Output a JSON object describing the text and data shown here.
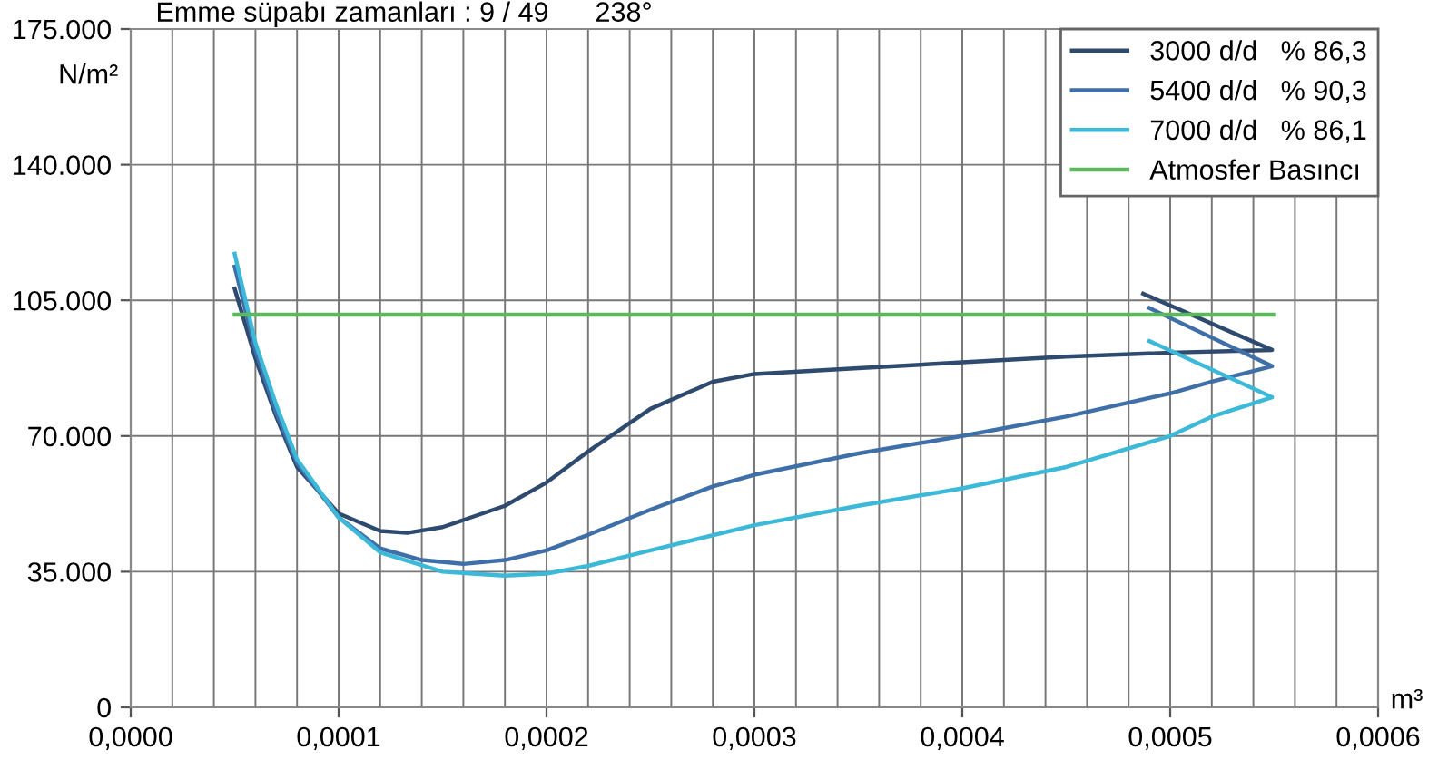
{
  "chart_data": {
    "type": "line",
    "title": "Emme süpabı zamanları : 9 / 49      238°",
    "ylabel": "N/m²",
    "xlabel": "m³",
    "xlim": [
      0,
      0.0006
    ],
    "ylim": [
      0,
      175000
    ],
    "xticks": [
      {
        "value": 0,
        "label": "0,0000"
      },
      {
        "value": 2e-05,
        "label": null
      },
      {
        "value": 4e-05,
        "label": null
      },
      {
        "value": 6e-05,
        "label": null
      },
      {
        "value": 8e-05,
        "label": null
      },
      {
        "value": 0.0001,
        "label": "0,0001"
      },
      {
        "value": 0.00012,
        "label": null
      },
      {
        "value": 0.00014,
        "label": null
      },
      {
        "value": 0.00016,
        "label": null
      },
      {
        "value": 0.00018,
        "label": null
      },
      {
        "value": 0.0002,
        "label": "0,0002"
      },
      {
        "value": 0.00022,
        "label": null
      },
      {
        "value": 0.00024,
        "label": null
      },
      {
        "value": 0.00026,
        "label": null
      },
      {
        "value": 0.00028,
        "label": null
      },
      {
        "value": 0.0003,
        "label": "0,0003"
      },
      {
        "value": 0.00032,
        "label": null
      },
      {
        "value": 0.00034,
        "label": null
      },
      {
        "value": 0.00036,
        "label": null
      },
      {
        "value": 0.00038,
        "label": null
      },
      {
        "value": 0.0004,
        "label": "0,0004"
      },
      {
        "value": 0.00042,
        "label": null
      },
      {
        "value": 0.00044,
        "label": null
      },
      {
        "value": 0.00046,
        "label": null
      },
      {
        "value": 0.00048,
        "label": null
      },
      {
        "value": 0.0005,
        "label": "0,0005"
      },
      {
        "value": 0.00052,
        "label": null
      },
      {
        "value": 0.00054,
        "label": null
      },
      {
        "value": 0.00056,
        "label": null
      },
      {
        "value": 0.00058,
        "label": null
      },
      {
        "value": 0.0006,
        "label": "0,0006"
      }
    ],
    "yticks": [
      {
        "value": 0,
        "label": "0"
      },
      {
        "value": 35000,
        "label": "35.000"
      },
      {
        "value": 70000,
        "label": "70.000"
      },
      {
        "value": 105000,
        "label": "105.000"
      },
      {
        "value": 140000,
        "label": "140.000"
      },
      {
        "value": 175000,
        "label": "175.000"
      }
    ],
    "grid": true,
    "legend": "top right",
    "marker": "none",
    "line_style": "solid",
    "series": [
      {
        "name": "3000 d/d   % 86,3",
        "color": "#2e4a6e",
        "x": [
          5e-05,
          6e-05,
          7e-05,
          8e-05,
          0.0001,
          0.00012,
          0.000133,
          0.00015,
          0.00018,
          0.0002,
          0.00022,
          0.00025,
          0.00028,
          0.0003,
          0.00035,
          0.0004,
          0.00045,
          0.0005,
          0.000549,
          0.000487
        ],
        "values": [
          108000,
          90000,
          75000,
          62000,
          50000,
          45500,
          45000,
          46500,
          52000,
          58000,
          66000,
          77000,
          84000,
          86000,
          87500,
          89000,
          90500,
          91500,
          92200,
          106700
        ]
      },
      {
        "name": "5400 d/d   % 90,3",
        "color": "#3f6fa8",
        "x": [
          5e-05,
          6e-05,
          7e-05,
          8e-05,
          0.0001,
          0.00012,
          0.00014,
          0.00016,
          0.00018,
          0.0002,
          0.00022,
          0.00025,
          0.00028,
          0.0003,
          0.00035,
          0.0004,
          0.00045,
          0.0005,
          0.00052,
          0.000549,
          0.00049
        ],
        "values": [
          113700,
          92000,
          76000,
          63000,
          49000,
          41000,
          38000,
          37000,
          38000,
          40500,
          44500,
          51000,
          57000,
          60000,
          65500,
          70000,
          75000,
          81000,
          84000,
          88000,
          103000
        ]
      },
      {
        "name": "7000 d/d   % 86,1",
        "color": "#3cb8d8",
        "x": [
          5e-05,
          6e-05,
          7e-05,
          8e-05,
          0.0001,
          0.00012,
          0.00015,
          0.00018,
          0.0002,
          0.00022,
          0.00025,
          0.0003,
          0.00035,
          0.0004,
          0.00045,
          0.0005,
          0.00052,
          0.000549,
          0.00049
        ],
        "values": [
          117000,
          94000,
          78000,
          64000,
          49000,
          40000,
          35000,
          34000,
          34500,
          36500,
          40500,
          47000,
          52000,
          56500,
          62000,
          70000,
          75000,
          80000,
          94500
        ]
      },
      {
        "name": "Atmosfer Basıncı",
        "color": "#5cb85c",
        "x": [
          5e-05,
          0.00055
        ],
        "values": [
          101300,
          101300
        ]
      }
    ]
  }
}
